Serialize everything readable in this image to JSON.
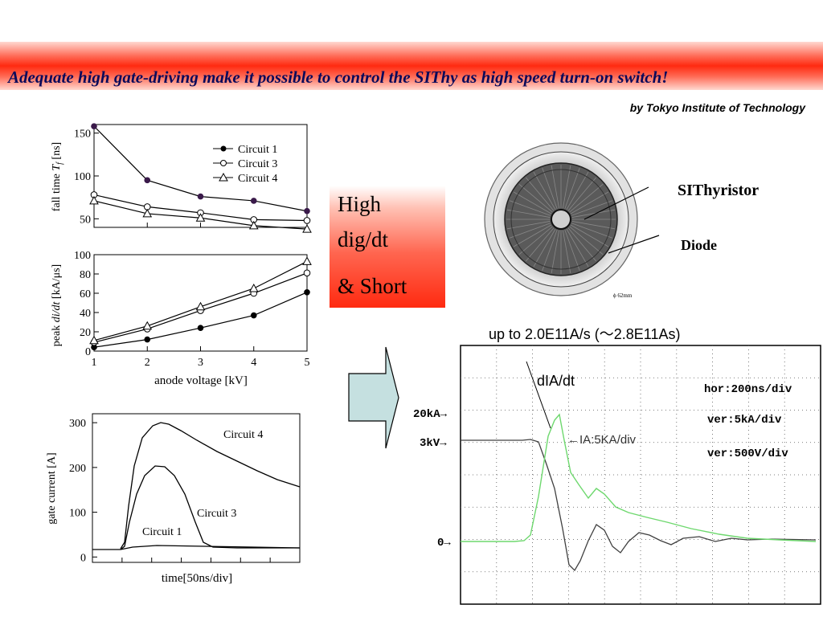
{
  "header": {
    "title": "Adequate high gate-driving make it possible to control the SIThy as high speed turn-on switch!",
    "credit": "by Tokyo Institute of Technology"
  },
  "highlight_box": {
    "line1": "High",
    "line2": "dig/dt",
    "line3": "& Short"
  },
  "device_photo": {
    "label_thyristor": "SIThyristor",
    "label_diode": "Diode",
    "scale_text": "ϕ 62mm"
  },
  "arrow": {
    "icon": "right-arrow-icon",
    "color": "#c5e0e0"
  },
  "chart_data": [
    {
      "type": "line",
      "ylabel": "fall time T_f [ns]",
      "x": [
        1,
        2,
        3,
        4,
        5
      ],
      "ylim": [
        40,
        160
      ],
      "yticks": [
        50,
        100,
        150
      ],
      "series": [
        {
          "name": "Circuit 1",
          "marker": "filled-circle",
          "values": [
            158,
            95,
            76,
            71,
            59
          ]
        },
        {
          "name": "Circuit 3",
          "marker": "open-circle",
          "values": [
            78,
            64,
            57,
            49,
            48
          ]
        },
        {
          "name": "Circuit 4",
          "marker": "open-triangle",
          "values": [
            71,
            56,
            51,
            42,
            38
          ]
        }
      ],
      "legend": "top-right"
    },
    {
      "type": "line",
      "ylabel": "peak di/dt [kA/μs]",
      "xlabel": "anode voltage [kV]",
      "x": [
        1,
        2,
        3,
        4,
        5
      ],
      "ylim": [
        0,
        100
      ],
      "yticks": [
        0,
        20,
        40,
        60,
        80,
        100
      ],
      "series": [
        {
          "marker": "filled-circle",
          "values": [
            4,
            12,
            24,
            37,
            61
          ]
        },
        {
          "marker": "open-circle",
          "values": [
            9,
            23,
            42,
            60,
            81
          ]
        },
        {
          "marker": "open-triangle",
          "values": [
            11,
            26,
            46,
            65,
            93
          ]
        }
      ]
    },
    {
      "type": "line",
      "ylabel": "gate current [A]",
      "xlabel": "time[50ns/div]",
      "ylim": [
        0,
        320
      ],
      "yticks": [
        0,
        100,
        200,
        300
      ],
      "annotations": [
        "Circuit 4",
        "Circuit 3",
        "Circuit 1"
      ]
    },
    {
      "type": "line",
      "annotations": {
        "peak": "up to 2.0E11A/s (～2.8E11As)",
        "dIdt": "dIA/dt",
        "ia": "←IA:5KA/div",
        "hor": "hor:200ns/div",
        "ver1": "ver:5kA/div",
        "ver2": "ver:500V/div",
        "marker_20ka": "20kA→",
        "marker_3kv": "3kV→",
        "marker_0": "0→"
      }
    }
  ]
}
